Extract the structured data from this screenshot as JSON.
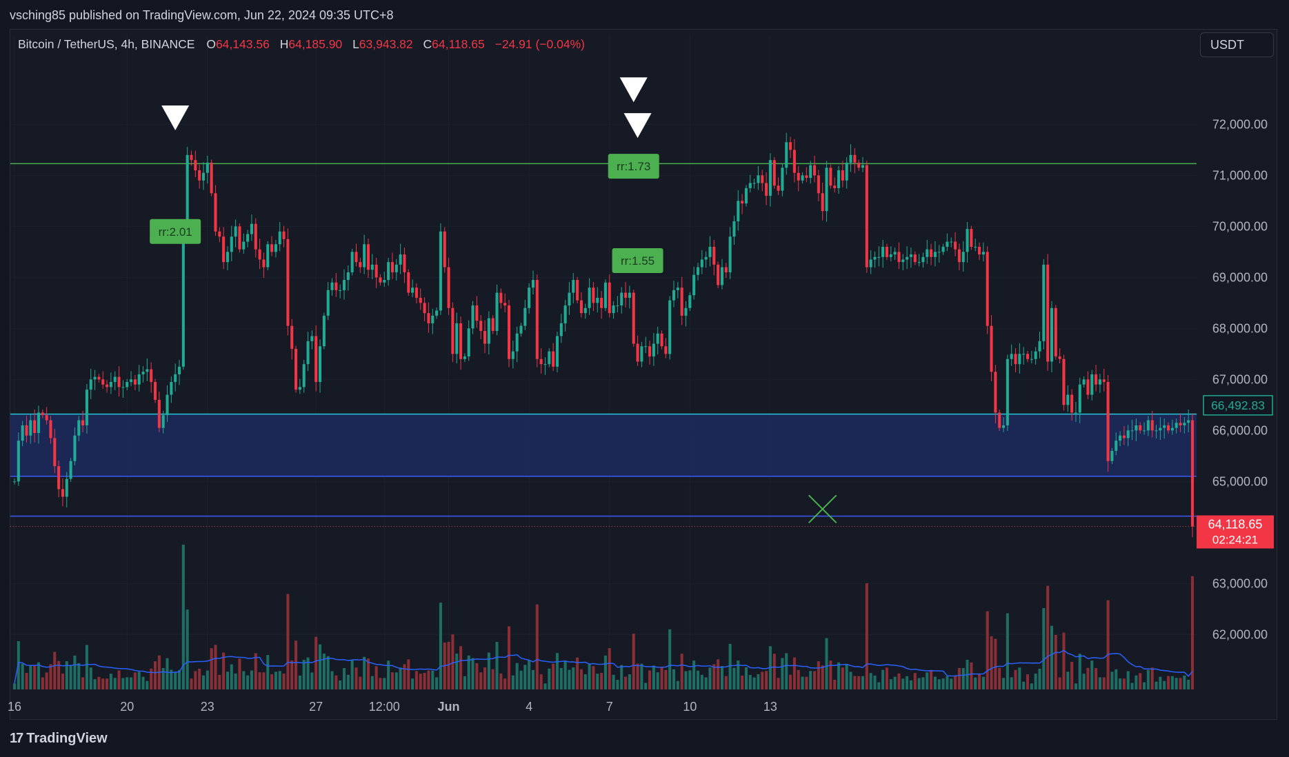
{
  "header": {
    "publisher": "vsching85 published on TradingView.com, Jun 22, 2024 09:35 UTC+8"
  },
  "legend": {
    "symbol": "Bitcoin / TetherUS, 4h, BINANCE",
    "o_label": "O",
    "o_value": "64,143.56",
    "h_label": "H",
    "h_value": "64,185.90",
    "l_label": "L",
    "l_value": "63,943.82",
    "c_label": "C",
    "c_value": "64,118.65",
    "change": "−24.91 (−0.04%)"
  },
  "currency_button": "USDT",
  "footer": {
    "brand": "TradingView"
  },
  "colors": {
    "up": "#22ab94",
    "down": "#f23645",
    "volume_up": "#1f6e64",
    "volume_down": "#8a2f35",
    "zone_fill": "#1c2a5e",
    "zone_line": "#3d5afe",
    "teal_line": "#26c6da",
    "green_line": "#4caf50",
    "ma_line": "#2962ff",
    "badge": "#4caf50",
    "price_tag": "#f23645"
  },
  "chart_data": {
    "type": "candlestick",
    "title": "Bitcoin / TetherUS, 4h, BINANCE",
    "y_ticks": [
      "72,000.00",
      "71,000.00",
      "70,000.00",
      "69,000.00",
      "68,000.00",
      "67,000.00",
      "66,000.00",
      "65,000.00",
      "63,000.00",
      "62,000.00"
    ],
    "y_tick_values": [
      72000,
      71000,
      70000,
      69000,
      68000,
      67000,
      66000,
      65000,
      63000,
      62000
    ],
    "x_ticks": [
      "16",
      "20",
      "23",
      "27",
      "12:00",
      "Jun",
      "4",
      "7",
      "10",
      "13"
    ],
    "x_tick_index": [
      0,
      28,
      48,
      75,
      92,
      108,
      128,
      148,
      168,
      188
    ],
    "ylim": [
      61450,
      72600
    ],
    "current_price": "64,118.65",
    "countdown": "02:24:21",
    "level_label": "66,492.83",
    "levels": {
      "resistance": 71230,
      "zone_top": 66320,
      "zone_bottom": 65100,
      "support": 64320,
      "current": 64118.65,
      "teal_level": 66492.83
    },
    "annotations": [
      {
        "type": "marker-down",
        "index": 40,
        "price": 72100
      },
      {
        "type": "marker-down",
        "index": 154,
        "price": 72650
      },
      {
        "type": "marker-down",
        "index": 155,
        "price": 71950
      },
      {
        "type": "badge",
        "text": "rr:2.01",
        "index": 40,
        "price": 69900
      },
      {
        "type": "badge",
        "text": "rr:1.73",
        "index": 154,
        "price": 71180
      },
      {
        "type": "badge",
        "text": "rr:1.55",
        "index": 155,
        "price": 69330
      },
      {
        "type": "cross",
        "index": 201,
        "price": 64460
      }
    ],
    "series": [
      {
        "name": "close",
        "values": [
          65000,
          65800,
          66100,
          65900,
          66200,
          65950,
          66350,
          66300,
          66200,
          65850,
          65300,
          64850,
          64700,
          65050,
          65400,
          65900,
          66200,
          66100,
          66800,
          67000,
          67050,
          67000,
          66900,
          66850,
          66950,
          67050,
          66850,
          66850,
          66950,
          67000,
          66900,
          67100,
          67150,
          67200,
          66950,
          66600,
          66050,
          66300,
          66700,
          66950,
          67100,
          67250,
          70000,
          71400,
          71300,
          71100,
          70900,
          71050,
          71250,
          70650,
          69900,
          69800,
          69300,
          69500,
          69800,
          70000,
          69550,
          69700,
          69850,
          70050,
          69550,
          69350,
          69200,
          69650,
          69500,
          69650,
          69900,
          69750,
          68050,
          67600,
          66800,
          66850,
          67300,
          67750,
          67850,
          66950,
          67650,
          68250,
          68750,
          68900,
          68750,
          68750,
          68950,
          69100,
          69500,
          69300,
          69200,
          69650,
          69150,
          69250,
          69000,
          68900,
          68950,
          69300,
          69100,
          69250,
          69450,
          69100,
          68700,
          68800,
          68600,
          68500,
          68300,
          68100,
          68250,
          68350,
          69900,
          69200,
          68400,
          67500,
          68100,
          67400,
          67450,
          68000,
          68450,
          68150,
          67950,
          67700,
          68200,
          67950,
          68700,
          68500,
          68450,
          67400,
          67550,
          67900,
          68050,
          68400,
          68800,
          68950,
          67400,
          67300,
          67300,
          67550,
          67250,
          67850,
          68100,
          68450,
          68700,
          68950,
          68550,
          68300,
          68400,
          68800,
          68500,
          68600,
          68400,
          68900,
          68300,
          68450,
          68450,
          68700,
          68600,
          68700,
          67700,
          67350,
          67650,
          67650,
          67450,
          67700,
          67900,
          67650,
          67500,
          68550,
          68750,
          68800,
          68250,
          68400,
          68650,
          69050,
          69200,
          69350,
          69400,
          69600,
          69250,
          68850,
          69200,
          69100,
          69800,
          70100,
          70500,
          70450,
          70750,
          70850,
          70850,
          71000,
          70850,
          70600,
          71300,
          70800,
          70700,
          71150,
          71650,
          71500,
          71050,
          70900,
          71000,
          70950,
          71200,
          71000,
          70650,
          70300,
          71150,
          70800,
          70750,
          71100,
          70900,
          71250,
          71400,
          71250,
          71150,
          71200,
          69200,
          69350,
          69400,
          69400,
          69600,
          69400,
          69450,
          69500,
          69300,
          69350,
          69400,
          69450,
          69300,
          69300,
          69400,
          69550,
          69400,
          69500,
          69500,
          69600,
          69700,
          69700,
          69550,
          69300,
          69500,
          69950,
          69600,
          69600,
          69450,
          69500,
          68050,
          67150,
          66350,
          66050,
          66100,
          67400,
          67500,
          67300,
          67500,
          67500,
          67400,
          67400,
          67550,
          67750,
          69250,
          67350,
          68400,
          67450,
          67400,
          66500,
          66700,
          66350,
          66350,
          66900,
          67000,
          66700,
          67100,
          66900,
          67000,
          66950,
          65400,
          65600,
          65800,
          65900,
          65850,
          66000,
          66000,
          66100,
          66000,
          66000,
          66200,
          66000,
          66000,
          66050,
          66100,
          66000,
          66050,
          66150,
          66100,
          66150,
          66200,
          64118.65
        ]
      }
    ]
  }
}
